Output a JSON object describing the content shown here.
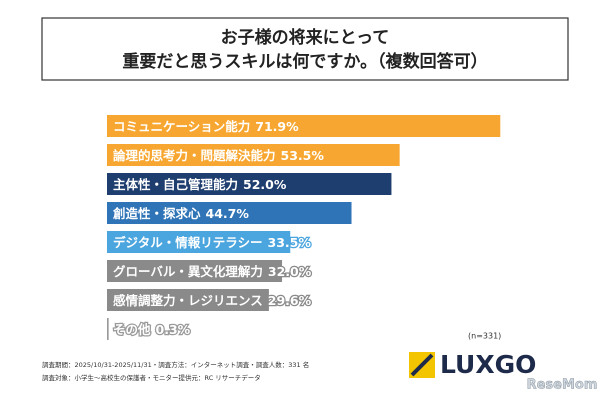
{
  "chart_data": {
    "type": "bar",
    "title": [
      "お子様の将来にとって",
      "重要だと思うスキルは何ですか。（複数回答可）"
    ],
    "categories": [
      "コミュニケーション能力",
      "論理的思考力・問題解決能力",
      "主体性・自己管理能力",
      "創造性・探求心",
      "デジタル・情報リテラシー",
      "グローバル・異文化理解力",
      "感情調整力・レジリエンス",
      "その他"
    ],
    "values": [
      71.9,
      53.5,
      52.0,
      44.7,
      33.5,
      32.0,
      29.6,
      0.3
    ],
    "value_labels": [
      "71.9%",
      "53.5%",
      "52.0%",
      "44.7%",
      "33.5%",
      "32.0%",
      "29.6%",
      "0.3%"
    ],
    "colors": [
      "#f7a731",
      "#f7a731",
      "#1e3e6f",
      "#2f74b7",
      "#4ba5de",
      "#8a8a8a",
      "#8a8a8a",
      "#9a9a9a"
    ],
    "note": "(n=331)",
    "footnotes": [
      "調査期間：2025/10/31-2025/11/31・調査方法：インターネット調査・調査人数：331 名",
      "調査対象：小学生～高校生の保護者・モニター提供元：RC リサーチデータ"
    ],
    "logo": "LUXGO",
    "watermark": "ReseMom"
  }
}
